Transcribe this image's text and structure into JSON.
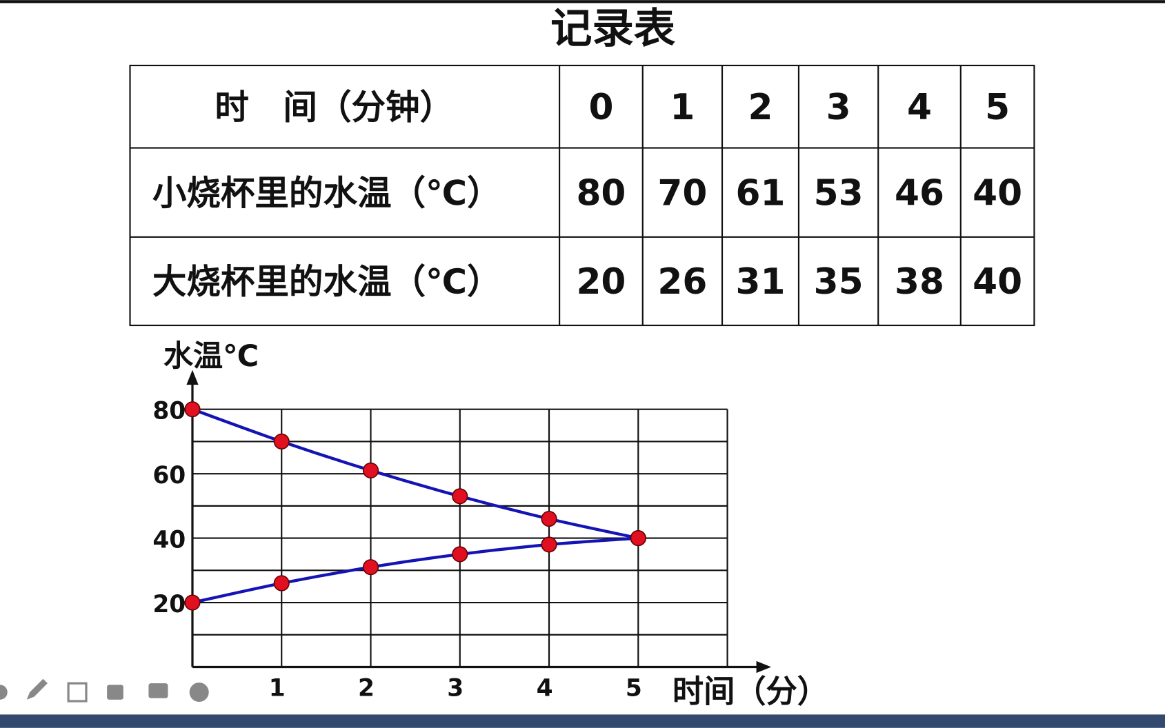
{
  "title": "记录表",
  "table": {
    "rows": [
      [
        "时　间（分钟）",
        "0",
        "1",
        "2",
        "3",
        "4",
        "5"
      ],
      [
        "小烧杯里的水温（℃）",
        "80",
        "70",
        "61",
        "53",
        "46",
        "40"
      ],
      [
        "大烧杯里的水温（℃）",
        "20",
        "26",
        "31",
        "35",
        "38",
        "40"
      ]
    ]
  },
  "chart_data": {
    "type": "line",
    "y_label": "水温℃",
    "x_label": "时间（分）",
    "x": [
      0,
      1,
      2,
      3,
      4,
      5
    ],
    "series": [
      {
        "color": "#1414b4",
        "marker_color": "#e01020",
        "values": [
          80,
          70,
          61,
          53,
          46,
          40
        ]
      },
      {
        "color": "#1414b4",
        "marker_color": "#e01020",
        "values": [
          20,
          26,
          31,
          35,
          38,
          40
        ]
      }
    ],
    "xlim": [
      0,
      6
    ],
    "ylim": [
      0,
      80
    ],
    "xticks": [
      1,
      2,
      3,
      4,
      5
    ],
    "yticks": [
      20,
      40,
      60,
      80
    ],
    "minor_yticks": [
      10,
      30,
      50,
      70
    ],
    "grid": true
  }
}
